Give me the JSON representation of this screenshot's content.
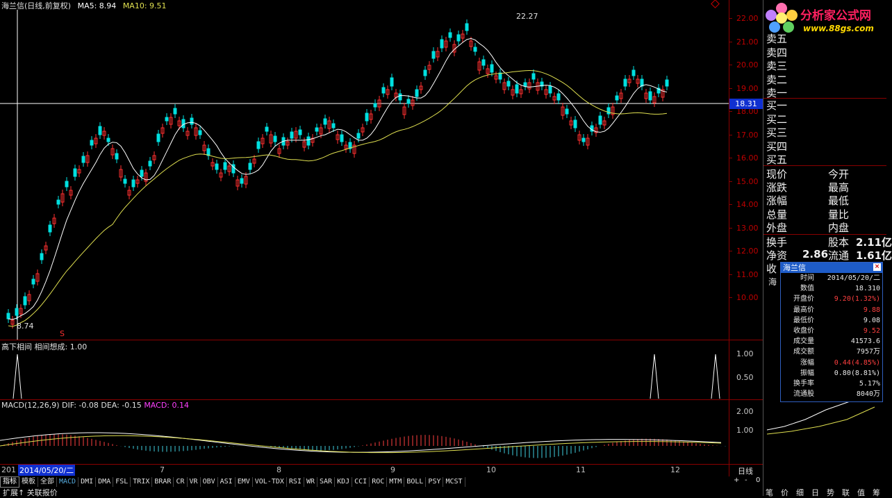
{
  "header": {
    "stock": "海兰信(日线,前复权)",
    "ma5": "MA5: 8.94",
    "ma10": "MA10: 9.51"
  },
  "colors": {
    "up": "#ff3030",
    "down": "#00e0e0",
    "ma5": "#ffffff",
    "ma10": "#e0e050",
    "grid": "#8b0000",
    "macd": "#ff40ff"
  },
  "price_axis": [
    "22.00",
    "21.00",
    "20.00",
    "19.00",
    "18.00",
    "17.00",
    "16.00",
    "15.00",
    "14.00",
    "13.00",
    "12.00",
    "11.00",
    "10.00"
  ],
  "annotations": {
    "high": "22.27",
    "low": "8.74",
    "cursor_price": "18.31",
    "marker": "S"
  },
  "indicator1": {
    "title": "高下相间 相间想成: 1.00",
    "ticks": [
      "1.00",
      "0.50"
    ]
  },
  "indicator2": {
    "title_a": "MACD(12,26,9) DIF: -0.08 DEA: -0.15 ",
    "title_b": "MACD: 0.14",
    "ticks": [
      "2.00",
      "1.00"
    ]
  },
  "date_axis": {
    "left": "201",
    "cursor_date": "2014/05/20/二",
    "months": [
      "7",
      "8",
      "9",
      "10",
      "11",
      "12"
    ],
    "period": "日线"
  },
  "tabs": [
    "指标",
    "模板",
    "全部",
    "MACD",
    "DMI",
    "DMA",
    "FSL",
    "TRIX",
    "BRAR",
    "CR",
    "VR",
    "OBV",
    "ASI",
    "EMV",
    "VOL-TDX",
    "RSI",
    "WR",
    "SAR",
    "KDJ",
    "CCI",
    "ROC",
    "MTM",
    "BOLL",
    "PSY",
    "MCST"
  ],
  "zoom": {
    "plus": "+",
    "minus": "-",
    "zero": "0"
  },
  "bottom_left": "扩展↑ 关联报价",
  "bottom_right": [
    "笔",
    "价",
    "细",
    "日",
    "势",
    "联",
    "值",
    "筹"
  ],
  "logo": {
    "title": "分析家公式网",
    "url": "www.88gs.com"
  },
  "orderbook": {
    "sells": [
      "卖五",
      "卖四",
      "卖三",
      "卖二",
      "卖一"
    ],
    "buys": [
      "买一",
      "买二",
      "买三",
      "买四",
      "买五"
    ]
  },
  "quote": [
    {
      "l": "现价",
      "r": "今开"
    },
    {
      "l": "涨跌",
      "r": "最高"
    },
    {
      "l": "涨幅",
      "r": "最低"
    },
    {
      "l": "总量",
      "r": "量比"
    },
    {
      "l": "外盘",
      "r": "内盘"
    },
    {
      "l": "换手",
      "r": "股本",
      "rv": "2.11亿"
    },
    {
      "l": "净资",
      "lv": "2.86",
      "r": "流通",
      "rv": "1.61亿"
    },
    {
      "l": "收"
    }
  ],
  "side_short": "海",
  "popup": {
    "title": "海兰信",
    "close": "×",
    "rows": [
      {
        "k": "时间",
        "v": "2014/05/20/二",
        "red": false
      },
      {
        "k": "数值",
        "v": "18.310",
        "red": false
      },
      {
        "k": "开盘价",
        "v": "9.20(1.32%)",
        "red": true
      },
      {
        "k": "最高价",
        "v": "9.88",
        "red": true
      },
      {
        "k": "最低价",
        "v": "9.08",
        "red": false
      },
      {
        "k": "收盘价",
        "v": "9.52",
        "red": true
      },
      {
        "k": "成交量",
        "v": "41573.6",
        "red": false
      },
      {
        "k": "成交额",
        "v": "7957万",
        "red": false
      },
      {
        "k": "涨幅",
        "v": "0.44(4.85%)",
        "red": true
      },
      {
        "k": "振幅",
        "v": "0.80(8.81%)",
        "red": false
      },
      {
        "k": "换手率",
        "v": "5.17%",
        "red": false
      },
      {
        "k": "流通股",
        "v": "8040万",
        "red": false
      }
    ]
  }
}
